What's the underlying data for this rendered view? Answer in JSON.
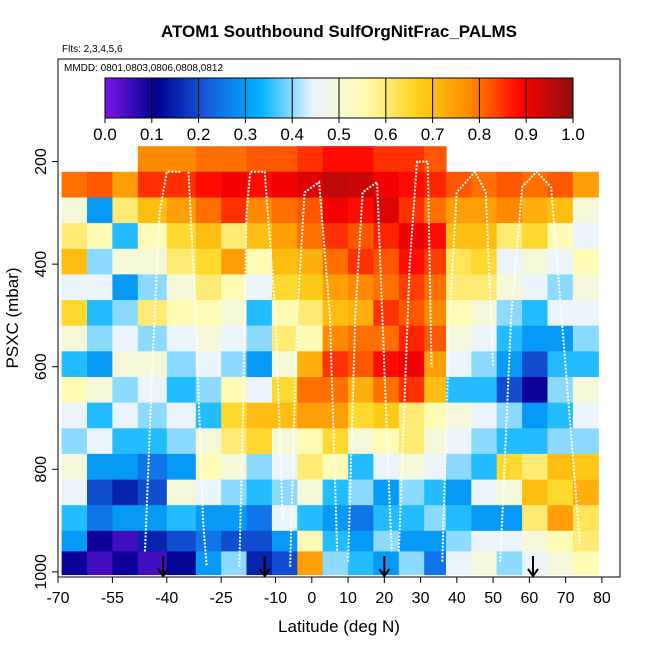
{
  "chart_data": {
    "type": "heatmap",
    "title": "ATOM1 Southbound SulfOrgNitFrac_PALMS",
    "flights_note": "Flts: 2,3,4,5,6",
    "mmdd_note": "MMDD: 0801,0803,0806,0808,0812",
    "xlabel": "Latitude (deg N)",
    "ylabel": "PSXC (mbar)",
    "xlim": [
      -70,
      85
    ],
    "ylim": [
      1010,
      0
    ],
    "x_ticks": [
      {
        "value": -70,
        "label": "-70"
      },
      {
        "value": -55,
        "label": "-55"
      },
      {
        "value": -40,
        "label": "-40"
      },
      {
        "value": -25,
        "label": "-25"
      },
      {
        "value": -10,
        "label": "-10"
      },
      {
        "value": 0,
        "label": "0"
      },
      {
        "value": 10,
        "label": "10"
      },
      {
        "value": 20,
        "label": "20"
      },
      {
        "value": 30,
        "label": "30"
      },
      {
        "value": 40,
        "label": "40"
      },
      {
        "value": 50,
        "label": "50"
      },
      {
        "value": 60,
        "label": "60"
      },
      {
        "value": 70,
        "label": "70"
      },
      {
        "value": 80,
        "label": "80"
      }
    ],
    "y_ticks": [
      {
        "value": 200,
        "label": "200"
      },
      {
        "value": 400,
        "label": "400"
      },
      {
        "value": 600,
        "label": "600"
      },
      {
        "value": 800,
        "label": "800"
      },
      {
        "value": 1000,
        "label": "1000"
      }
    ],
    "colorbar": {
      "range": [
        0.0,
        1.0
      ],
      "tick_labels": [
        "0.0",
        "0.1",
        "0.2",
        "0.3",
        "0.4",
        "0.5",
        "0.6",
        "0.7",
        "0.8",
        "0.9",
        "1.0"
      ],
      "colors": [
        "#7a17e8",
        "#00008f",
        "#1460e0",
        "#00b3ff",
        "#eaf4ff",
        "#fffbb0",
        "#ffd21a",
        "#ff8c00",
        "#ff0000",
        "#8b1010"
      ]
    },
    "pressure_bins": [
      170,
      220,
      270,
      320,
      370,
      420,
      470,
      520,
      570,
      620,
      670,
      720,
      770,
      820,
      870,
      920,
      960,
      1005
    ],
    "lat_columns": [
      {
        "lat": [
          -69,
          -62
        ],
        "values": [
          null,
          0.8,
          0.5,
          0.6,
          0.7,
          0.45,
          0.65,
          0.5,
          0.35,
          0.55,
          0.45,
          0.4,
          0.5,
          0.45,
          0.35,
          0.3,
          0.1
        ]
      },
      {
        "lat": [
          -62,
          -55
        ],
        "values": [
          null,
          0.82,
          0.3,
          0.55,
          0.4,
          0.45,
          0.35,
          0.4,
          0.3,
          0.5,
          0.35,
          0.45,
          0.3,
          0.2,
          0.25,
          0.1,
          0.05
        ]
      },
      {
        "lat": [
          -55,
          -48
        ],
        "values": [
          null,
          0.75,
          0.6,
          0.35,
          0.5,
          0.3,
          0.4,
          0.45,
          0.5,
          0.4,
          0.45,
          0.35,
          0.3,
          0.15,
          0.3,
          0.05,
          0.1
        ]
      },
      {
        "lat": [
          -48,
          -40
        ],
        "values": [
          0.78,
          0.85,
          0.7,
          0.55,
          0.5,
          0.4,
          0.6,
          0.4,
          0.5,
          0.45,
          0.4,
          0.35,
          0.25,
          0.2,
          0.3,
          0.15,
          0.05
        ]
      },
      {
        "lat": [
          -40,
          -32
        ],
        "values": [
          0.78,
          0.85,
          0.75,
          0.65,
          0.6,
          0.5,
          0.55,
          0.45,
          0.4,
          0.35,
          0.45,
          0.4,
          0.3,
          0.5,
          0.35,
          0.2,
          0.12
        ]
      },
      {
        "lat": [
          -32,
          -25
        ],
        "values": [
          0.8,
          0.88,
          0.8,
          0.7,
          0.65,
          0.6,
          0.55,
          0.5,
          0.45,
          0.4,
          0.35,
          0.5,
          0.55,
          0.45,
          0.3,
          0.25,
          0.3
        ]
      },
      {
        "lat": [
          -25,
          -18
        ],
        "values": [
          0.8,
          0.9,
          0.85,
          0.6,
          0.75,
          0.55,
          0.5,
          0.45,
          0.4,
          0.55,
          0.65,
          0.6,
          0.5,
          0.4,
          0.3,
          0.2,
          0.4
        ]
      },
      {
        "lat": [
          -18,
          -11
        ],
        "values": [
          0.82,
          0.88,
          0.78,
          0.7,
          0.55,
          0.45,
          0.35,
          0.4,
          0.3,
          0.45,
          0.7,
          0.65,
          0.4,
          0.35,
          0.25,
          0.2,
          0.15
        ]
      },
      {
        "lat": [
          -11,
          -4
        ],
        "values": [
          0.82,
          0.9,
          0.8,
          0.75,
          0.7,
          0.65,
          0.55,
          0.6,
          0.5,
          0.65,
          0.7,
          0.5,
          0.45,
          0.4,
          0.45,
          0.3,
          0.2
        ]
      },
      {
        "lat": [
          -4,
          3
        ],
        "values": [
          0.85,
          0.92,
          0.82,
          0.8,
          0.72,
          0.68,
          0.6,
          0.55,
          0.72,
          0.8,
          0.75,
          0.55,
          0.6,
          0.5,
          0.35,
          0.55,
          0.75
        ]
      },
      {
        "lat": [
          3,
          10
        ],
        "values": [
          0.88,
          0.95,
          0.9,
          0.85,
          0.8,
          0.75,
          0.7,
          0.78,
          0.85,
          0.8,
          0.75,
          0.65,
          0.55,
          0.35,
          0.3,
          0.35,
          0.4
        ]
      },
      {
        "lat": [
          10,
          17
        ],
        "values": [
          0.88,
          0.94,
          0.88,
          0.82,
          0.85,
          0.78,
          0.72,
          0.8,
          0.82,
          0.72,
          0.65,
          0.5,
          0.35,
          0.4,
          0.25,
          0.3,
          0.35
        ]
      },
      {
        "lat": [
          17,
          24
        ],
        "values": [
          0.85,
          0.9,
          0.92,
          0.86,
          0.82,
          0.8,
          0.85,
          0.8,
          0.88,
          0.8,
          0.68,
          0.55,
          0.45,
          0.3,
          0.35,
          0.4,
          0.3
        ]
      },
      {
        "lat": [
          24,
          31
        ],
        "values": [
          0.85,
          0.88,
          0.85,
          0.9,
          0.88,
          0.84,
          0.82,
          0.86,
          0.9,
          0.85,
          0.6,
          0.6,
          0.5,
          0.4,
          0.35,
          0.3,
          0.4
        ]
      },
      {
        "lat": [
          31,
          37
        ],
        "values": [
          0.82,
          0.86,
          0.8,
          0.88,
          0.84,
          0.8,
          0.78,
          0.82,
          0.75,
          0.7,
          0.55,
          0.5,
          0.45,
          0.35,
          0.4,
          0.3,
          0.25
        ]
      },
      {
        "lat": [
          37,
          44
        ],
        "values": [
          null,
          0.82,
          0.75,
          0.7,
          0.62,
          0.6,
          0.55,
          0.5,
          0.45,
          0.35,
          0.5,
          0.45,
          0.4,
          0.3,
          0.35,
          0.4,
          0.45
        ]
      },
      {
        "lat": [
          44,
          51
        ],
        "values": [
          null,
          0.8,
          0.75,
          0.7,
          0.65,
          0.6,
          0.5,
          0.45,
          0.4,
          0.35,
          0.45,
          0.4,
          0.35,
          0.45,
          0.3,
          0.45,
          0.5
        ]
      },
      {
        "lat": [
          51,
          58
        ],
        "values": [
          null,
          0.82,
          0.78,
          0.6,
          0.45,
          0.5,
          0.4,
          0.35,
          0.3,
          0.2,
          0.4,
          0.35,
          0.65,
          0.5,
          0.3,
          0.45,
          0.4
        ]
      },
      {
        "lat": [
          58,
          65
        ],
        "values": [
          null,
          0.8,
          0.72,
          0.65,
          0.5,
          0.45,
          0.35,
          0.3,
          0.2,
          0.1,
          0.3,
          0.35,
          0.6,
          0.7,
          0.6,
          0.5,
          0.45
        ]
      },
      {
        "lat": [
          65,
          72
        ],
        "values": [
          null,
          0.82,
          0.7,
          0.55,
          0.45,
          0.4,
          0.45,
          0.3,
          0.35,
          0.4,
          0.35,
          0.4,
          0.7,
          0.65,
          0.75,
          0.55,
          0.5
        ]
      },
      {
        "lat": [
          72,
          79
        ],
        "values": [
          null,
          0.75,
          0.5,
          0.45,
          0.55,
          0.5,
          0.45,
          0.4,
          0.35,
          0.5,
          0.45,
          0.4,
          0.68,
          0.72,
          0.62,
          0.6,
          0.55
        ]
      }
    ],
    "flight_paths": [
      {
        "points": [
          [
            -46,
            960
          ],
          [
            -44,
            600
          ],
          [
            -42,
            300
          ],
          [
            -40,
            220
          ],
          [
            -36,
            220
          ]
        ]
      },
      {
        "points": [
          [
            -34,
            220
          ],
          [
            -32,
            500
          ],
          [
            -30,
            900
          ],
          [
            -29,
            990
          ]
        ]
      },
      {
        "points": [
          [
            -20,
            990
          ],
          [
            -19,
            700
          ],
          [
            -18,
            300
          ],
          [
            -17,
            220
          ],
          [
            -13,
            220
          ],
          [
            -10,
            500
          ],
          [
            -8,
            900
          ]
        ]
      },
      {
        "points": [
          [
            -6,
            990
          ],
          [
            -4,
            500
          ],
          [
            -2,
            260
          ],
          [
            2,
            240
          ],
          [
            5,
            500
          ],
          [
            7,
            960
          ]
        ]
      },
      {
        "points": [
          [
            10,
            980
          ],
          [
            12,
            500
          ],
          [
            14,
            260
          ],
          [
            18,
            240
          ],
          [
            20,
            600
          ],
          [
            22,
            960
          ]
        ]
      },
      {
        "points": [
          [
            24,
            960
          ],
          [
            27,
            400
          ],
          [
            29,
            200
          ],
          [
            32,
            200
          ],
          [
            33,
            600
          ]
        ]
      },
      {
        "points": [
          [
            36,
            980
          ],
          [
            38,
            500
          ],
          [
            40,
            260
          ],
          [
            45,
            220
          ],
          [
            48,
            260
          ],
          [
            50,
            600
          ]
        ]
      },
      {
        "points": [
          [
            52,
            980
          ],
          [
            55,
            500
          ],
          [
            58,
            250
          ],
          [
            62,
            220
          ],
          [
            66,
            250
          ],
          [
            70,
            600
          ],
          [
            74,
            950
          ]
        ]
      }
    ],
    "arrow_markers": [
      -41,
      -13,
      20,
      61
    ]
  }
}
